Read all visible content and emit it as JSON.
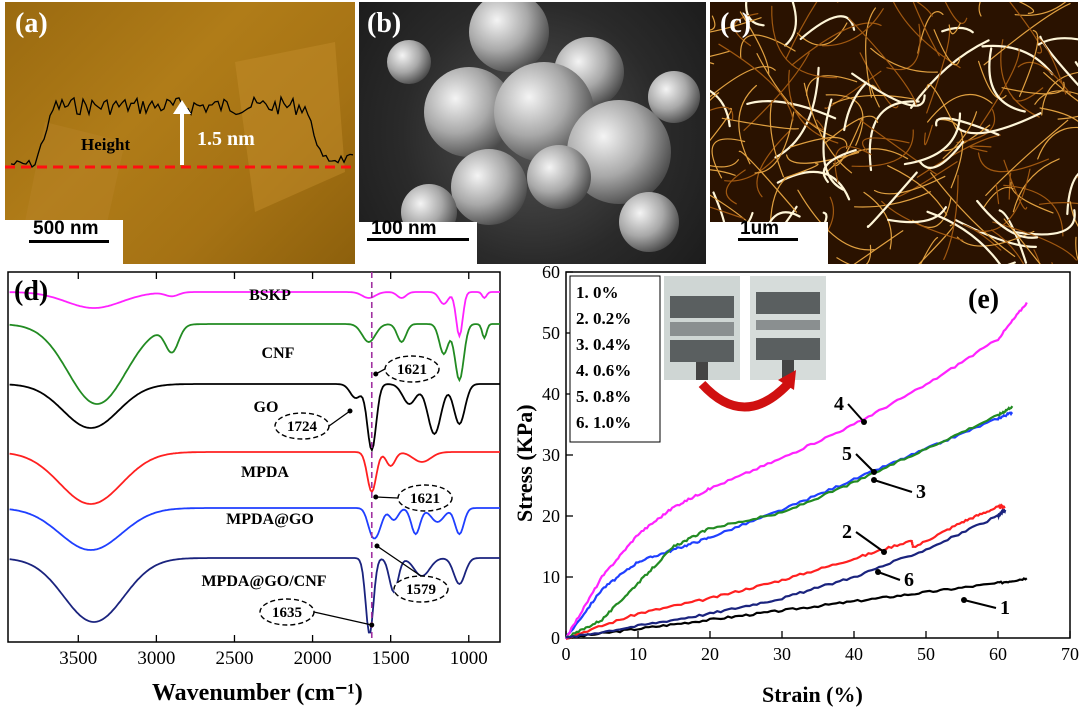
{
  "panel_a": {
    "label": "(a)",
    "height_label": "Height",
    "height_value": "1.5 nm",
    "scale_bar": "500 nm"
  },
  "panel_b": {
    "label": "(b)",
    "scale_bar": "100 nm"
  },
  "panel_c": {
    "label": "(c)",
    "scale_bar": "1um"
  },
  "panel_d": {
    "label": "(d)",
    "xlabel": "Wavenumber (cm⁻¹)",
    "xticks": [
      "3500",
      "3000",
      "2500",
      "2000",
      "1500",
      "1000"
    ],
    "spectra": [
      "BSKP",
      "CNF",
      "GO",
      "MPDA",
      "MPDA@GO",
      "MPDA@GO/CNF"
    ],
    "annotations": [
      "1621",
      "1724",
      "1621",
      "1579",
      "1635"
    ],
    "colors": {
      "BSKP": "#ff22ff",
      "CNF": "#228b22",
      "GO": "#000000",
      "MPDA": "#ff2020",
      "MPDA@GO": "#1f3fff",
      "MPDA@GO/CNF": "#1a237e"
    }
  },
  "panel_e": {
    "label": "(e)",
    "xlabel": "Strain (%)",
    "ylabel": "Stress (KPa)",
    "legend": [
      "1.  0%",
      "2.  0.2%",
      "3. 0.4%",
      "4. 0.6%",
      "5. 0.8%",
      "6. 1.0%"
    ],
    "curve_labels": [
      "1",
      "2",
      "3",
      "4",
      "5",
      "6"
    ]
  },
  "chart_data": [
    {
      "type": "line",
      "title": "",
      "xlabel": "Wavenumber (cm⁻¹)",
      "ylabel": "",
      "xlim": [
        3950,
        800
      ],
      "xticks": [
        3500,
        3000,
        2500,
        2000,
        1500,
        1000
      ],
      "reference_line": 1621,
      "series": [
        {
          "name": "BSKP",
          "color": "#ff22ff"
        },
        {
          "name": "CNF",
          "color": "#228b22"
        },
        {
          "name": "GO",
          "color": "#000000"
        },
        {
          "name": "MPDA",
          "color": "#ff2020"
        },
        {
          "name": "MPDA@GO",
          "color": "#1f3fff"
        },
        {
          "name": "MPDA@GO/CNF",
          "color": "#1a237e"
        }
      ],
      "annotations": [
        1621,
        1724,
        1621,
        1579,
        1635
      ]
    },
    {
      "type": "line",
      "title": "",
      "xlabel": "Strain (%)",
      "ylabel": "Stress (KPa)",
      "xlim": [
        0,
        70
      ],
      "ylim": [
        0,
        60
      ],
      "xticks": [
        0,
        10,
        20,
        30,
        40,
        50,
        60,
        70
      ],
      "yticks": [
        0,
        10,
        20,
        30,
        40,
        50,
        60
      ],
      "series": [
        {
          "name": "1",
          "color": "#000000",
          "x": [
            0,
            10,
            20,
            30,
            40,
            50,
            60,
            64
          ],
          "y": [
            0,
            1.5,
            3,
            4.5,
            6,
            7.5,
            9,
            9.8
          ]
        },
        {
          "name": "2",
          "color": "#ff2020",
          "x": [
            0,
            10,
            20,
            30,
            40,
            48,
            48.2,
            55,
            60,
            61
          ],
          "y": [
            0,
            4,
            6.5,
            9.5,
            13,
            16,
            14.8,
            19,
            21.5,
            21.5
          ]
        },
        {
          "name": "3",
          "color": "#1f3fff",
          "x": [
            0,
            5,
            10,
            15,
            20,
            30,
            40,
            50,
            60,
            62
          ],
          "y": [
            0,
            8,
            12.5,
            14.5,
            16.5,
            21,
            26,
            31,
            36,
            37
          ]
        },
        {
          "name": "4",
          "color": "#ff22ff",
          "x": [
            0,
            5,
            10,
            15,
            20,
            30,
            40,
            50,
            60,
            64
          ],
          "y": [
            0,
            10,
            17,
            21.5,
            24.5,
            29.5,
            35,
            41.5,
            49,
            55
          ]
        },
        {
          "name": "5",
          "color": "#228b22",
          "x": [
            0,
            5,
            10,
            15,
            20,
            30,
            40,
            50,
            60,
            62
          ],
          "y": [
            0,
            3,
            9,
            15,
            18,
            20.5,
            25.5,
            31,
            36.5,
            38
          ]
        },
        {
          "name": "6",
          "color": "#1a237e",
          "x": [
            0,
            10,
            20,
            30,
            40,
            50,
            60,
            61
          ],
          "y": [
            0,
            2,
            4,
            6.5,
            10,
            14.5,
            20,
            21
          ]
        }
      ]
    }
  ]
}
